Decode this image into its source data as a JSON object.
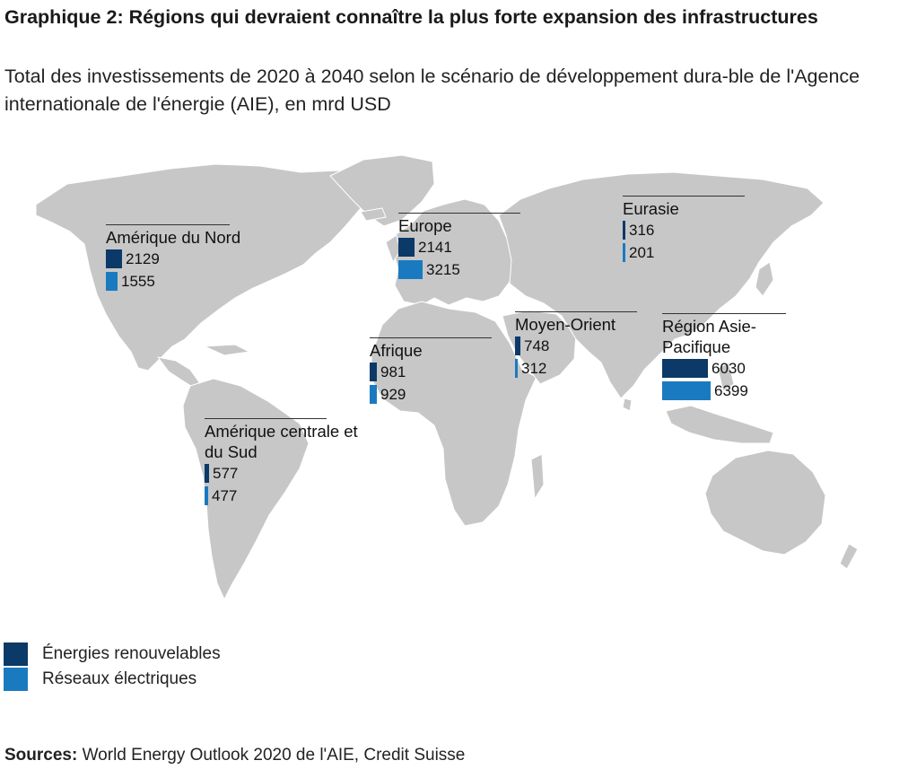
{
  "title": "Graphique 2: Régions qui devraient connaître la plus forte expansion des infrastructures",
  "subtitle": "Total des investissements de 2020 à 2040 selon le scénario de développement dura-ble de l'Agence internationale de l'énergie (AIE), en mrd USD",
  "colors": {
    "renouvelables": "#0b3968",
    "reseaux": "#1a7ac0",
    "land": "#c7c7c7",
    "border": "#ffffff"
  },
  "legend": {
    "renouvelables": "Énergies renouvelables",
    "reseaux": "Réseaux électriques"
  },
  "sources": {
    "label": "Sources:",
    "text": " World Energy Outlook 2020 de l'AIE, Credit Suisse"
  },
  "regions": {
    "amerique_nord": {
      "name": "Amérique du Nord",
      "renouvelables": 2129,
      "reseaux": 1555
    },
    "europe": {
      "name": "Europe",
      "renouvelables": 2141,
      "reseaux": 3215
    },
    "eurasie": {
      "name": "Eurasie",
      "renouvelables": 316,
      "reseaux": 201
    },
    "afrique": {
      "name": "Afrique",
      "renouvelables": 981,
      "reseaux": 929
    },
    "moyen_orient": {
      "name": "Moyen-Orient",
      "renouvelables": 748,
      "reseaux": 312
    },
    "asie_pacifique": {
      "name": "Région Asie-Pacifique",
      "renouvelables": 6030,
      "reseaux": 6399
    },
    "amerique_sud": {
      "name": "Amérique centrale et du Sud",
      "renouvelables": 577,
      "reseaux": 477
    }
  }
}
